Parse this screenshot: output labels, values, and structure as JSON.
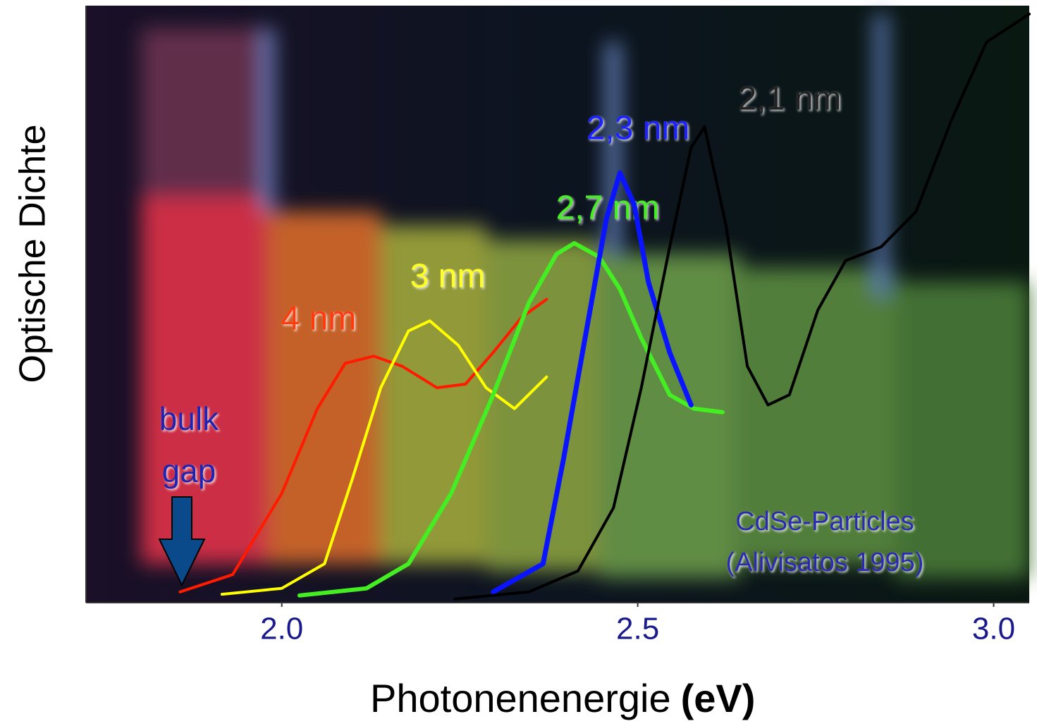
{
  "chart_data": {
    "type": "line",
    "x_label": "Photonenenergie",
    "x_unit": "(eV)",
    "y_label": "Optische Dichte",
    "xlim": [
      1.725,
      3.05
    ],
    "ylim": [
      0,
      1
    ],
    "xticks": [
      {
        "value": 2.0,
        "label": "2.0"
      },
      {
        "value": 2.5,
        "label": "2.5"
      },
      {
        "value": 3.0,
        "label": "3.0"
      }
    ],
    "series": [
      {
        "name": "4 nm",
        "color": "#ff1a00",
        "x": [
          1.857,
          1.931,
          2.0,
          2.05,
          2.089,
          2.129,
          2.169,
          2.218,
          2.258,
          2.297,
          2.337,
          2.372
        ],
        "values": [
          0.018,
          0.047,
          0.183,
          0.325,
          0.401,
          0.413,
          0.396,
          0.36,
          0.366,
          0.419,
          0.478,
          0.508
        ]
      },
      {
        "name": "3 nm",
        "color": "#ffff00",
        "x": [
          1.916,
          2.0,
          2.06,
          2.099,
          2.139,
          2.178,
          2.208,
          2.248,
          2.287,
          2.327,
          2.372
        ],
        "values": [
          0.014,
          0.024,
          0.065,
          0.207,
          0.36,
          0.455,
          0.472,
          0.431,
          0.36,
          0.325,
          0.378
        ]
      },
      {
        "name": "2,7 nm",
        "color": "#44ee22",
        "x": [
          2.025,
          2.119,
          2.178,
          2.238,
          2.297,
          2.347,
          2.386,
          2.411,
          2.446,
          2.475,
          2.505,
          2.545,
          2.579,
          2.619
        ],
        "values": [
          0.012,
          0.024,
          0.065,
          0.183,
          0.348,
          0.502,
          0.584,
          0.602,
          0.579,
          0.525,
          0.443,
          0.348,
          0.325,
          0.319
        ]
      },
      {
        "name": "2,3 nm",
        "color": "#0a14ff",
        "x": [
          2.297,
          2.367,
          2.396,
          2.426,
          2.456,
          2.475,
          2.495,
          2.515,
          2.545,
          2.575
        ],
        "values": [
          0.018,
          0.065,
          0.242,
          0.443,
          0.643,
          0.72,
          0.667,
          0.537,
          0.419,
          0.331
        ]
      },
      {
        "name": "2,1 nm",
        "color": "#000000",
        "x": [
          2.243,
          2.347,
          2.416,
          2.466,
          2.505,
          2.545,
          2.575,
          2.594,
          2.624,
          2.654,
          2.683,
          2.713,
          2.753,
          2.792,
          2.842,
          2.891,
          2.941,
          2.99,
          3.05
        ],
        "values": [
          0.006,
          0.018,
          0.053,
          0.159,
          0.36,
          0.596,
          0.762,
          0.797,
          0.632,
          0.396,
          0.331,
          0.348,
          0.49,
          0.573,
          0.596,
          0.655,
          0.809,
          0.939,
          0.986
        ]
      }
    ],
    "annotations": [
      [
        "bulk",
        "gap"
      ],
      [
        "CdSe-Particles",
        "(Alivisatos 1995)"
      ]
    ]
  }
}
